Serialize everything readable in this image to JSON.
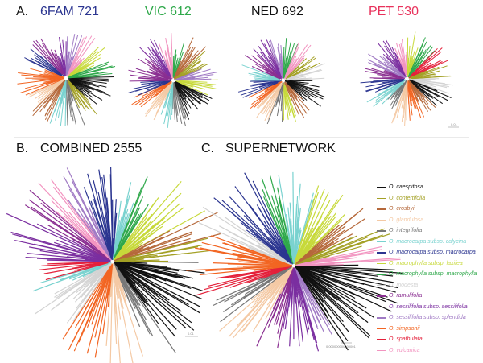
{
  "panels": {
    "a": {
      "letter": "A.",
      "markers": [
        {
          "label": "6FAM 721",
          "color": "#2b3590"
        },
        {
          "label": "VIC 612",
          "color": "#2ea84a"
        },
        {
          "label": "NED 692",
          "color": "#111111"
        },
        {
          "label": "PET 530",
          "color": "#e8315b"
        }
      ],
      "scale_label": "0.01"
    },
    "b": {
      "letter": "B.",
      "title": "COMBINED 2555",
      "scale_label": "0.01"
    },
    "c": {
      "letter": "C.",
      "title": "SUPERNETWORK",
      "scale_label": "0.000000000000001"
    }
  },
  "legend": [
    {
      "label": "O. caespitosa",
      "color": "#111111"
    },
    {
      "label": "O. confertifolia",
      "color": "#a3a024"
    },
    {
      "label": "O. crosbyi",
      "color": "#b5683a"
    },
    {
      "label": "O. glandulosa",
      "color": "#f4c9a4"
    },
    {
      "label": "O. integrifolia",
      "color": "#777777"
    },
    {
      "label": "O. macrocarpa subsp. calycina",
      "color": "#79d2cf"
    },
    {
      "label": "O. macrocarpa subsp. macrocarpa",
      "color": "#2b3590"
    },
    {
      "label": "O. macrophylla subsp. laxifea",
      "color": "#c7d93a"
    },
    {
      "label": "O. macrophylla subsp. macrophylla",
      "color": "#2ea84a"
    },
    {
      "label": "O. modesta",
      "color": "#d3d3d3"
    },
    {
      "label": "O. ramulifolia",
      "color": "#8a2e91"
    },
    {
      "label": "O. sessilifolia subsp. sessilifolia",
      "color": "#7b2fa0"
    },
    {
      "label": "O. sessilifolia subsp. splendida",
      "color": "#a07ac4"
    },
    {
      "label": "O. simpsonii",
      "color": "#f26522"
    },
    {
      "label": "O. spathulata",
      "color": "#e4203a"
    },
    {
      "label": "O. vulcanica",
      "color": "#f294c0"
    }
  ]
}
